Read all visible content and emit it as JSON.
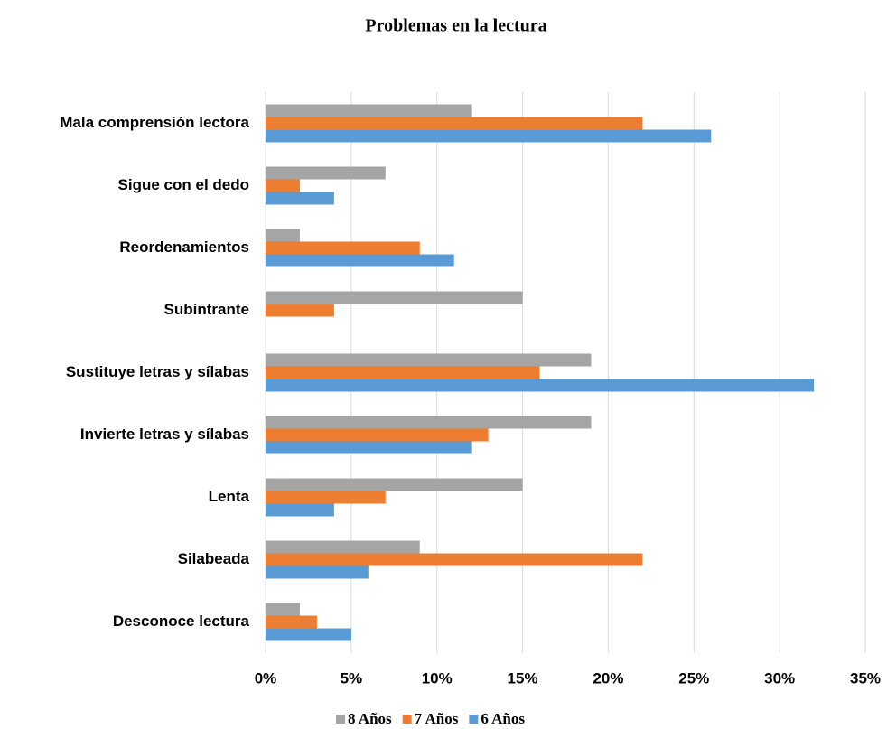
{
  "chart_data": {
    "type": "bar",
    "orientation": "horizontal",
    "title": "Problemas en la  lectura",
    "categories": [
      "Mala comprensión lectora",
      "Sigue con el dedo",
      "Reordenamientos",
      "Subintrante",
      "Sustituye letras y sílabas",
      "Invierte letras y sílabas",
      "Lenta",
      "Silabeada",
      "Desconoce lectura"
    ],
    "series": [
      {
        "name": "8 Años",
        "color": "#a5a5a5",
        "values": [
          12,
          7,
          2,
          15,
          19,
          19,
          15,
          9,
          2
        ]
      },
      {
        "name": "7 Años",
        "color": "#ed7d31",
        "values": [
          22,
          2,
          9,
          4,
          16,
          13,
          7,
          22,
          3
        ]
      },
      {
        "name": "6 Años",
        "color": "#5b9bd5",
        "values": [
          26,
          4,
          11,
          0,
          32,
          12,
          4,
          6,
          5
        ]
      }
    ],
    "xlim": [
      0,
      35
    ],
    "xticks": [
      {
        "value": 0,
        "label": "0%"
      },
      {
        "value": 5,
        "label": "5%"
      },
      {
        "value": 10,
        "label": "10%"
      },
      {
        "value": 15,
        "label": "15%"
      },
      {
        "value": 20,
        "label": "20%"
      },
      {
        "value": 25,
        "label": "25%"
      },
      {
        "value": 30,
        "label": "30%"
      },
      {
        "value": 35,
        "label": "35%"
      }
    ],
    "grid": true,
    "legend": "bottom"
  }
}
